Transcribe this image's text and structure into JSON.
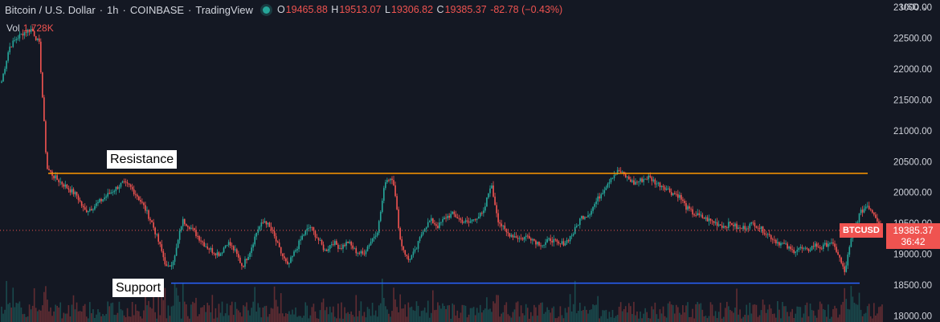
{
  "header": {
    "symbol_title": "Bitcoin / U.S. Dollar",
    "interval": "1h",
    "exchange": "COINBASE",
    "source": "TradingView",
    "open_label": "O",
    "open": "19465.88",
    "high_label": "H",
    "high": "19513.07",
    "low_label": "L",
    "low": "19306.82",
    "close_label": "C",
    "close": "19385.37",
    "change": "-82.78 (−0.43%)",
    "vol_label": "Vol",
    "vol_value": "1.728K"
  },
  "currency_menu": "USD",
  "annotations": {
    "resistance": "Resistance",
    "support": "Support"
  },
  "last_price": {
    "symbol": "BTCUSD",
    "price": "19385.37",
    "countdown": "36:42"
  },
  "colors": {
    "background": "#141823",
    "up": "#26a69a",
    "down": "#ef5350",
    "resistance_line": "#ff9800",
    "support_line": "#2962ff",
    "text": "#d1d4dc"
  },
  "chart_data": {
    "type": "candlestick",
    "y_axis_ticks": [
      23000,
      22500,
      22000,
      21500,
      21000,
      20500,
      20000,
      19500,
      19000,
      18500,
      18000
    ],
    "y_axis_tick_labels": [
      "23000.00",
      "22500.00",
      "22000.00",
      "21500.00",
      "21000.00",
      "20500.00",
      "20000.00",
      "19500.00",
      "19000.00",
      "18500.00",
      "18000.00"
    ],
    "ylim": [
      17900,
      23120
    ],
    "resistance_level": 20310,
    "support_level": 18530,
    "last_close": 19385.37,
    "close_path": [
      21800,
      22350,
      22500,
      22600,
      22650,
      22400,
      20400,
      20250,
      20150,
      20050,
      19950,
      19700,
      19750,
      19850,
      19950,
      20050,
      20150,
      20100,
      19950,
      19750,
      19500,
      19150,
      18750,
      18950,
      19550,
      19450,
      19300,
      19150,
      19050,
      19000,
      19200,
      19050,
      18800,
      19050,
      19400,
      19550,
      19350,
      19050,
      18800,
      19050,
      19300,
      19450,
      19250,
      19050,
      19200,
      19100,
      19200,
      19050,
      19000,
      19200,
      19400,
      20200,
      20250,
      19200,
      18900,
      19050,
      19400,
      19550,
      19450,
      19600,
      19650,
      19550,
      19500,
      19600,
      19650,
      20150,
      19550,
      19350,
      19300,
      19250,
      19300,
      19200,
      19150,
      19250,
      19150,
      19200,
      19350,
      19600,
      19650,
      19850,
      20050,
      20250,
      20350,
      20250,
      20150,
      20200,
      20250,
      20150,
      20100,
      20000,
      19950,
      19750,
      19650,
      19600,
      19550,
      19500,
      19450,
      19500,
      19400,
      19450,
      19500,
      19400,
      19300,
      19200,
      19150,
      19050,
      19100,
      19050,
      19150,
      19100,
      19200,
      19050,
      18700,
      19300,
      19650,
      19800,
      19650,
      19400
    ]
  }
}
